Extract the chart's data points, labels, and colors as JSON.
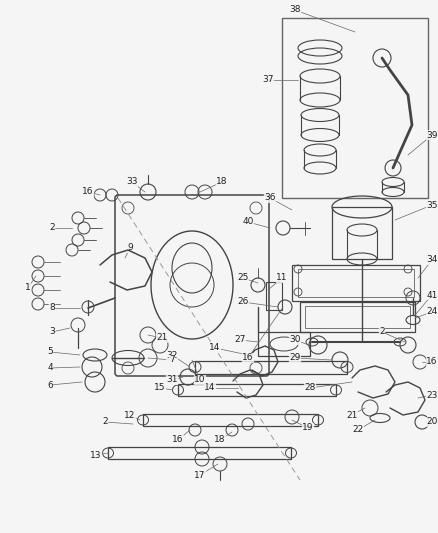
{
  "figsize": [
    4.38,
    5.33
  ],
  "dpi": 100,
  "bg": "#f5f5f5",
  "pc": "#444444",
  "lc": "#666666",
  "tc": "#222222",
  "lw_main": 0.9,
  "lw_thin": 0.6,
  "fs": 6.5
}
